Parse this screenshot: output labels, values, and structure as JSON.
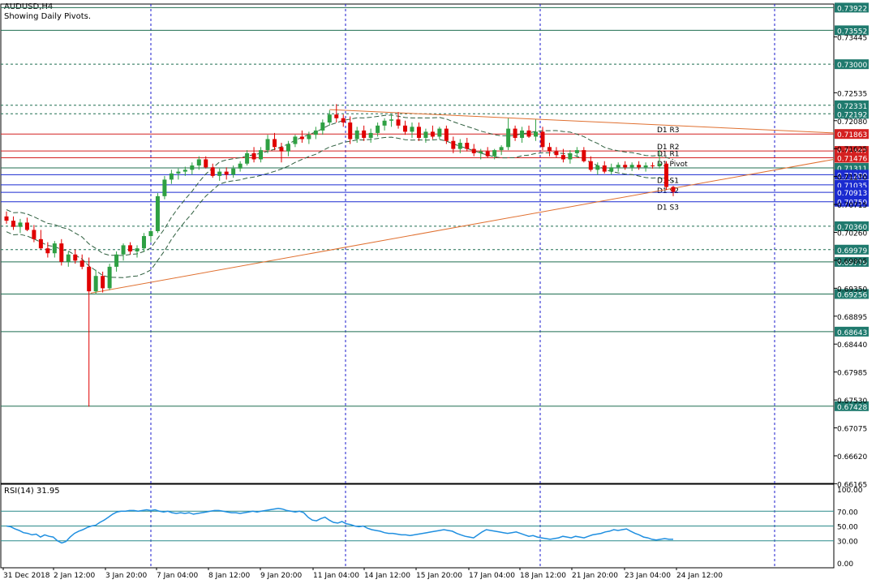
{
  "header": {
    "symbol": "AUDUSD,H4",
    "subtitle": "Showing Daily Pivots."
  },
  "rsi_label": "RSI(14) 31.95",
  "colors": {
    "bull": "#2ea043",
    "bear": "#e00000",
    "grid": "#1a1acc",
    "price_tag_green": "#1f7a6e",
    "price_tag_red": "#d42020",
    "price_tag_blue": "#1a2ad0",
    "rsi_line": "#1f8fe0",
    "trend_line": "#e07030",
    "band": "#2e5e3e"
  },
  "chart_data": {
    "type": "candlestick",
    "title": "AUDUSD,H4",
    "subtitle": "Showing Daily Pivots.",
    "ylim": [
      0.6617,
      0.7398
    ],
    "price_axis_ticks": [
      0.73445,
      0.72535,
      0.7208,
      0.71625,
      0.7117,
      0.70715,
      0.7026,
      0.69805,
      0.6935,
      0.68895,
      0.6844,
      0.67985,
      0.6753,
      0.67075,
      0.6662,
      0.66165
    ],
    "x_tick_labels": [
      "31 Dec 2018",
      "2 Jan 12:00",
      "3 Jan 20:00",
      "7 Jan 04:00",
      "8 Jan 12:00",
      "9 Jan 20:00",
      "11 Jan 04:00",
      "14 Jan 12:00",
      "15 Jan 20:00",
      "17 Jan 04:00",
      "18 Jan 12:00",
      "21 Jan 20:00",
      "23 Jan 04:00",
      "24 Jan 12:00"
    ],
    "horizontal_levels": [
      {
        "value": 0.73922,
        "tag": "0.73922",
        "kind": "green"
      },
      {
        "value": 0.73552,
        "tag": "0.73552",
        "kind": "green"
      },
      {
        "value": 0.73,
        "tag": "0.73000",
        "kind": "green",
        "style": "dashed"
      },
      {
        "value": 0.72331,
        "tag": "0.72331",
        "kind": "green",
        "style": "dashed"
      },
      {
        "value": 0.72192,
        "tag": "0.72192",
        "kind": "green",
        "style": "dashed"
      },
      {
        "value": 0.71863,
        "tag": "0.71863",
        "kind": "red",
        "label": "D1  R3"
      },
      {
        "value": 0.71587,
        "tag": "0.71587",
        "kind": "red",
        "label": "D1  R2"
      },
      {
        "value": 0.71476,
        "tag": "0.71476",
        "kind": "red",
        "label": "D1  R1"
      },
      {
        "value": 0.71311,
        "tag": "0.71311",
        "kind": "green",
        "label": "D1  Pivot"
      },
      {
        "value": 0.712,
        "tag": "0.71200",
        "kind": "blue",
        "label": "D1  S1"
      },
      {
        "value": 0.71035,
        "tag": "0.71035",
        "kind": "blue",
        "label": "D1  S2"
      },
      {
        "value": 0.70913,
        "tag": "0.70913",
        "kind": "blue"
      },
      {
        "value": 0.70759,
        "tag": "0.70759",
        "kind": "blue",
        "label": "D1  S3"
      },
      {
        "value": 0.7036,
        "tag": "0.70360",
        "kind": "green",
        "style": "dashed"
      },
      {
        "value": 0.69979,
        "tag": "0.69979",
        "kind": "green",
        "style": "dashed"
      },
      {
        "value": 0.69779,
        "tag": "0.69779",
        "kind": "green"
      },
      {
        "value": 0.69256,
        "tag": "0.69256",
        "kind": "green"
      },
      {
        "value": 0.68643,
        "tag": "0.68643",
        "kind": "green"
      },
      {
        "value": 0.67428,
        "tag": "0.67428",
        "kind": "green"
      }
    ],
    "candles": [
      {
        "o": 0.7052,
        "h": 0.706,
        "l": 0.704,
        "c": 0.7045
      },
      {
        "o": 0.7045,
        "h": 0.7052,
        "l": 0.703,
        "c": 0.7035
      },
      {
        "o": 0.7035,
        "h": 0.7048,
        "l": 0.7025,
        "c": 0.7042
      },
      {
        "o": 0.7042,
        "h": 0.705,
        "l": 0.7028,
        "c": 0.703
      },
      {
        "o": 0.703,
        "h": 0.7038,
        "l": 0.701,
        "c": 0.7015
      },
      {
        "o": 0.7015,
        "h": 0.703,
        "l": 0.6998,
        "c": 0.7
      },
      {
        "o": 0.7,
        "h": 0.701,
        "l": 0.6985,
        "c": 0.6992
      },
      {
        "o": 0.6992,
        "h": 0.7012,
        "l": 0.6985,
        "c": 0.7008
      },
      {
        "o": 0.7008,
        "h": 0.7015,
        "l": 0.6972,
        "c": 0.6978
      },
      {
        "o": 0.6978,
        "h": 0.6995,
        "l": 0.697,
        "c": 0.699
      },
      {
        "o": 0.699,
        "h": 0.6998,
        "l": 0.6975,
        "c": 0.698
      },
      {
        "o": 0.698,
        "h": 0.699,
        "l": 0.6966,
        "c": 0.697
      },
      {
        "o": 0.697,
        "h": 0.6985,
        "l": 0.6742,
        "c": 0.693
      },
      {
        "o": 0.693,
        "h": 0.6965,
        "l": 0.6925,
        "c": 0.6955
      },
      {
        "o": 0.6955,
        "h": 0.6962,
        "l": 0.6928,
        "c": 0.6935
      },
      {
        "o": 0.6935,
        "h": 0.6975,
        "l": 0.6932,
        "c": 0.697
      },
      {
        "o": 0.697,
        "h": 0.6995,
        "l": 0.6962,
        "c": 0.699
      },
      {
        "o": 0.699,
        "h": 0.7008,
        "l": 0.698,
        "c": 0.7005
      },
      {
        "o": 0.7005,
        "h": 0.701,
        "l": 0.699,
        "c": 0.6995
      },
      {
        "o": 0.6995,
        "h": 0.7005,
        "l": 0.6985,
        "c": 0.7
      },
      {
        "o": 0.7,
        "h": 0.7025,
        "l": 0.6995,
        "c": 0.702
      },
      {
        "o": 0.702,
        "h": 0.703,
        "l": 0.701,
        "c": 0.7028
      },
      {
        "o": 0.7028,
        "h": 0.709,
        "l": 0.7025,
        "c": 0.7085
      },
      {
        "o": 0.7085,
        "h": 0.7118,
        "l": 0.708,
        "c": 0.7112
      },
      {
        "o": 0.7112,
        "h": 0.7128,
        "l": 0.7105,
        "c": 0.7122
      },
      {
        "o": 0.7122,
        "h": 0.713,
        "l": 0.7112,
        "c": 0.7125
      },
      {
        "o": 0.7125,
        "h": 0.7133,
        "l": 0.7118,
        "c": 0.7128
      },
      {
        "o": 0.7128,
        "h": 0.714,
        "l": 0.712,
        "c": 0.7135
      },
      {
        "o": 0.7135,
        "h": 0.715,
        "l": 0.7128,
        "c": 0.7145
      },
      {
        "o": 0.7145,
        "h": 0.715,
        "l": 0.713,
        "c": 0.7132
      },
      {
        "o": 0.7132,
        "h": 0.7138,
        "l": 0.7115,
        "c": 0.7118
      },
      {
        "o": 0.7118,
        "h": 0.713,
        "l": 0.711,
        "c": 0.7125
      },
      {
        "o": 0.7125,
        "h": 0.7132,
        "l": 0.7112,
        "c": 0.712
      },
      {
        "o": 0.712,
        "h": 0.7135,
        "l": 0.7115,
        "c": 0.713
      },
      {
        "o": 0.713,
        "h": 0.7142,
        "l": 0.7125,
        "c": 0.7138
      },
      {
        "o": 0.7138,
        "h": 0.716,
        "l": 0.7135,
        "c": 0.7155
      },
      {
        "o": 0.7155,
        "h": 0.7165,
        "l": 0.714,
        "c": 0.7145
      },
      {
        "o": 0.7145,
        "h": 0.7165,
        "l": 0.714,
        "c": 0.716
      },
      {
        "o": 0.716,
        "h": 0.7185,
        "l": 0.7155,
        "c": 0.7178
      },
      {
        "o": 0.7178,
        "h": 0.7188,
        "l": 0.716,
        "c": 0.7165
      },
      {
        "o": 0.7165,
        "h": 0.7172,
        "l": 0.714,
        "c": 0.7158
      },
      {
        "o": 0.7158,
        "h": 0.7175,
        "l": 0.715,
        "c": 0.717
      },
      {
        "o": 0.717,
        "h": 0.7185,
        "l": 0.7165,
        "c": 0.7182
      },
      {
        "o": 0.7182,
        "h": 0.7192,
        "l": 0.7172,
        "c": 0.7178
      },
      {
        "o": 0.7178,
        "h": 0.719,
        "l": 0.717,
        "c": 0.7185
      },
      {
        "o": 0.7185,
        "h": 0.7198,
        "l": 0.7178,
        "c": 0.7192
      },
      {
        "o": 0.7192,
        "h": 0.721,
        "l": 0.7185,
        "c": 0.7205
      },
      {
        "o": 0.7205,
        "h": 0.7225,
        "l": 0.72,
        "c": 0.7218
      },
      {
        "o": 0.7218,
        "h": 0.7235,
        "l": 0.7205,
        "c": 0.7212
      },
      {
        "o": 0.7212,
        "h": 0.7218,
        "l": 0.7198,
        "c": 0.7205
      },
      {
        "o": 0.7205,
        "h": 0.7215,
        "l": 0.717,
        "c": 0.7178
      },
      {
        "o": 0.7178,
        "h": 0.7198,
        "l": 0.7172,
        "c": 0.7192
      },
      {
        "o": 0.7192,
        "h": 0.72,
        "l": 0.7175,
        "c": 0.718
      },
      {
        "o": 0.718,
        "h": 0.7195,
        "l": 0.7172,
        "c": 0.7188
      },
      {
        "o": 0.7188,
        "h": 0.7205,
        "l": 0.7182,
        "c": 0.72
      },
      {
        "o": 0.72,
        "h": 0.7212,
        "l": 0.7192,
        "c": 0.7208
      },
      {
        "o": 0.7208,
        "h": 0.7218,
        "l": 0.7198,
        "c": 0.721
      },
      {
        "o": 0.721,
        "h": 0.7222,
        "l": 0.7195,
        "c": 0.72
      },
      {
        "o": 0.72,
        "h": 0.7208,
        "l": 0.7185,
        "c": 0.719
      },
      {
        "o": 0.719,
        "h": 0.7205,
        "l": 0.718,
        "c": 0.7198
      },
      {
        "o": 0.7198,
        "h": 0.7205,
        "l": 0.7175,
        "c": 0.718
      },
      {
        "o": 0.718,
        "h": 0.7195,
        "l": 0.7172,
        "c": 0.719
      },
      {
        "o": 0.719,
        "h": 0.72,
        "l": 0.7178,
        "c": 0.7182
      },
      {
        "o": 0.7182,
        "h": 0.7198,
        "l": 0.7178,
        "c": 0.7195
      },
      {
        "o": 0.7195,
        "h": 0.72,
        "l": 0.717,
        "c": 0.7175
      },
      {
        "o": 0.7175,
        "h": 0.7182,
        "l": 0.7155,
        "c": 0.7162
      },
      {
        "o": 0.7162,
        "h": 0.7178,
        "l": 0.7155,
        "c": 0.7172
      },
      {
        "o": 0.7172,
        "h": 0.718,
        "l": 0.7158,
        "c": 0.7162
      },
      {
        "o": 0.7162,
        "h": 0.717,
        "l": 0.715,
        "c": 0.7155
      },
      {
        "o": 0.7155,
        "h": 0.7162,
        "l": 0.7145,
        "c": 0.7158
      },
      {
        "o": 0.7158,
        "h": 0.7165,
        "l": 0.7148,
        "c": 0.715
      },
      {
        "o": 0.715,
        "h": 0.7162,
        "l": 0.7145,
        "c": 0.716
      },
      {
        "o": 0.716,
        "h": 0.7168,
        "l": 0.7152,
        "c": 0.7165
      },
      {
        "o": 0.7165,
        "h": 0.7212,
        "l": 0.716,
        "c": 0.7195
      },
      {
        "o": 0.7195,
        "h": 0.72,
        "l": 0.7175,
        "c": 0.718
      },
      {
        "o": 0.718,
        "h": 0.7198,
        "l": 0.7172,
        "c": 0.7192
      },
      {
        "o": 0.7192,
        "h": 0.72,
        "l": 0.718,
        "c": 0.7182
      },
      {
        "o": 0.7182,
        "h": 0.721,
        "l": 0.7175,
        "c": 0.719
      },
      {
        "o": 0.719,
        "h": 0.7198,
        "l": 0.716,
        "c": 0.7165
      },
      {
        "o": 0.7165,
        "h": 0.7172,
        "l": 0.715,
        "c": 0.7158
      },
      {
        "o": 0.7158,
        "h": 0.7165,
        "l": 0.7148,
        "c": 0.7152
      },
      {
        "o": 0.7152,
        "h": 0.7162,
        "l": 0.714,
        "c": 0.7145
      },
      {
        "o": 0.7145,
        "h": 0.716,
        "l": 0.7138,
        "c": 0.7155
      },
      {
        "o": 0.7155,
        "h": 0.7165,
        "l": 0.7148,
        "c": 0.716
      },
      {
        "o": 0.716,
        "h": 0.7165,
        "l": 0.714,
        "c": 0.7142
      },
      {
        "o": 0.7142,
        "h": 0.715,
        "l": 0.7125,
        "c": 0.7128
      },
      {
        "o": 0.7128,
        "h": 0.714,
        "l": 0.712,
        "c": 0.7135
      },
      {
        "o": 0.7135,
        "h": 0.7142,
        "l": 0.7122,
        "c": 0.7125
      },
      {
        "o": 0.7125,
        "h": 0.7138,
        "l": 0.712,
        "c": 0.7132
      },
      {
        "o": 0.7132,
        "h": 0.714,
        "l": 0.7125,
        "c": 0.7136
      },
      {
        "o": 0.7136,
        "h": 0.7142,
        "l": 0.7128,
        "c": 0.7132
      },
      {
        "o": 0.7132,
        "h": 0.714,
        "l": 0.7126,
        "c": 0.7136
      },
      {
        "o": 0.7136,
        "h": 0.7142,
        "l": 0.7128,
        "c": 0.7132
      },
      {
        "o": 0.7132,
        "h": 0.714,
        "l": 0.7125,
        "c": 0.7135
      },
      {
        "o": 0.7135,
        "h": 0.714,
        "l": 0.713,
        "c": 0.7134
      },
      {
        "o": 0.7134,
        "h": 0.716,
        "l": 0.713,
        "c": 0.7138
      },
      {
        "o": 0.7138,
        "h": 0.7142,
        "l": 0.7095,
        "c": 0.71
      },
      {
        "o": 0.71,
        "h": 0.7102,
        "l": 0.7085,
        "c": 0.7092
      }
    ],
    "rsi": {
      "name": "RSI(14)",
      "last": 31.95,
      "ylim": [
        0,
        100
      ],
      "ticks": [
        100.0,
        70.0,
        50.0,
        30.0,
        0.0
      ],
      "levels": [
        70,
        50,
        30
      ],
      "values": [
        50,
        49,
        46,
        44,
        41,
        40,
        38,
        39,
        35,
        38,
        36,
        35,
        30,
        27,
        29,
        35,
        40,
        43,
        45,
        48,
        50,
        51,
        55,
        58,
        62,
        66,
        69,
        70,
        70,
        71,
        71,
        70,
        71,
        72,
        71,
        72,
        70,
        69,
        70,
        68,
        67,
        68,
        67,
        68,
        66,
        67,
        68,
        69,
        70,
        71,
        71,
        70,
        69,
        68,
        68,
        67,
        68,
        69,
        70,
        69,
        70,
        71,
        72,
        73,
        74,
        73,
        71,
        70,
        69,
        70,
        68,
        62,
        58,
        57,
        60,
        62,
        58,
        55,
        54,
        56,
        53,
        52,
        50,
        49,
        50,
        47,
        45,
        44,
        43,
        41,
        40,
        40,
        39,
        38,
        38,
        37,
        38,
        39,
        40,
        41,
        42,
        43,
        44,
        45,
        44,
        43,
        40,
        38,
        36,
        35,
        34,
        38,
        42,
        45,
        44,
        43,
        42,
        41,
        40,
        41,
        42,
        40,
        38,
        36,
        37,
        35,
        34,
        33,
        32,
        33,
        34,
        36,
        35,
        34,
        36,
        35,
        34,
        36,
        38,
        39,
        40,
        42,
        43,
        45,
        44,
        45,
        46,
        43,
        40,
        38,
        35,
        34,
        32,
        31,
        32,
        33,
        32,
        31.95
      ]
    }
  }
}
